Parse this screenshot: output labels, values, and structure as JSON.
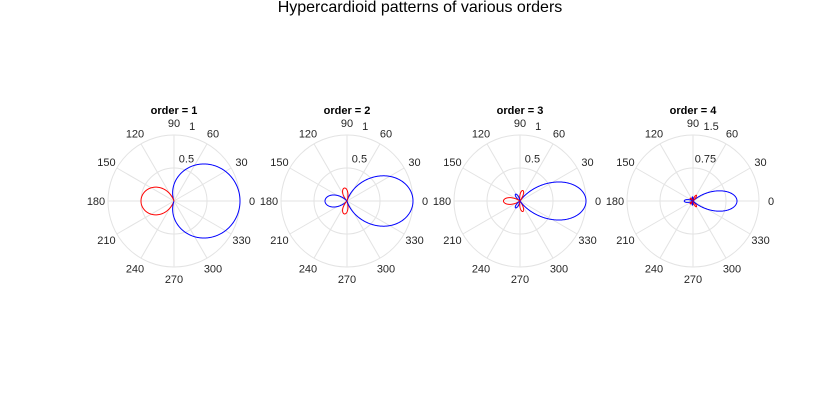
{
  "chart_data": {
    "type": "polar",
    "title": "Hypercardioid patterns of various orders",
    "pattern_definition": "f(theta) = sum_{n=0..N} (2n+1) P_n(cos theta) / (N+1)^2; |f| plotted, blue where f>=0, red where f<0",
    "colors": {
      "positive": "#0000ff",
      "negative": "#ff0000",
      "grid": "#e3e3e3"
    },
    "angle_ticks": [
      "0",
      "30",
      "60",
      "90",
      "120",
      "150",
      "180",
      "210",
      "240",
      "270",
      "300",
      "330"
    ],
    "subplots": [
      {
        "title": "order = 1",
        "order": 1,
        "rlim": [
          0,
          1
        ],
        "rticks": [
          "0.5",
          "1"
        ],
        "rtick_values": [
          0.5,
          1
        ]
      },
      {
        "title": "order = 2",
        "order": 2,
        "rlim": [
          0,
          1
        ],
        "rticks": [
          "0.5",
          "1"
        ],
        "rtick_values": [
          0.5,
          1
        ]
      },
      {
        "title": "order = 3",
        "order": 3,
        "rlim": [
          0,
          1
        ],
        "rticks": [
          "0.5",
          "1"
        ],
        "rtick_values": [
          0.5,
          1
        ]
      },
      {
        "title": "order = 4",
        "order": 4,
        "rlim": [
          0,
          1.5
        ],
        "rticks": [
          "0.75",
          "1.5"
        ],
        "rtick_values": [
          0.75,
          1.5
        ]
      }
    ]
  }
}
